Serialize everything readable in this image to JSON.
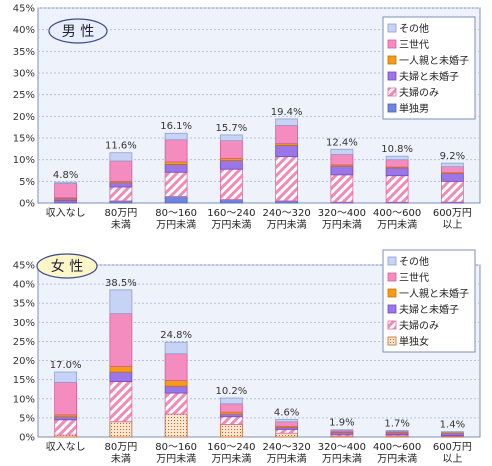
{
  "chart_data": [
    {
      "type": "bar",
      "stacked": true,
      "title": "男 性",
      "ylim": [
        0,
        45
      ],
      "yticks": [
        "0%",
        "5%",
        "10%",
        "15%",
        "20%",
        "25%",
        "30%",
        "35%",
        "40%",
        "45%"
      ],
      "categories": [
        [
          "収入なし"
        ],
        [
          "80万円",
          "未満"
        ],
        [
          "80～160",
          "万円未満"
        ],
        [
          "160～240",
          "万円未満"
        ],
        [
          "240～320",
          "万円未満"
        ],
        [
          "320～400",
          "万円未満"
        ],
        [
          "400～600",
          "万円未満"
        ],
        [
          "600万円",
          "以上"
        ]
      ],
      "total_labels": [
        "4.8%",
        "11.6%",
        "16.1%",
        "15.7%",
        "19.4%",
        "12.4%",
        "10.8%",
        "9.2%"
      ],
      "totals": [
        4.8,
        11.6,
        16.1,
        15.7,
        19.4,
        12.4,
        10.8,
        9.2
      ],
      "series": [
        {
          "name": "単独男",
          "values": [
            0.3,
            0.5,
            1.5,
            0.8,
            0.5,
            0.2,
            0.2,
            0.2
          ]
        },
        {
          "name": "夫婦のみ",
          "values": [
            0.2,
            3.2,
            5.6,
            7.0,
            10.2,
            6.3,
            6.1,
            4.8
          ]
        },
        {
          "name": "夫婦と未婚子",
          "values": [
            0.5,
            1.0,
            1.8,
            2.0,
            2.6,
            2.0,
            1.8,
            1.8
          ]
        },
        {
          "name": "一人親と未婚子",
          "values": [
            0.2,
            0.3,
            0.6,
            0.5,
            0.4,
            0.3,
            0.2,
            0.2
          ]
        },
        {
          "name": "三世代",
          "values": [
            3.3,
            4.7,
            5.1,
            4.1,
            4.2,
            2.4,
            1.7,
            1.4
          ]
        },
        {
          "name": "その他",
          "values": [
            0.3,
            1.9,
            1.5,
            1.3,
            1.5,
            1.2,
            0.8,
            0.8
          ]
        }
      ]
    },
    {
      "type": "bar",
      "stacked": true,
      "title": "女 性",
      "ylim": [
        0,
        45
      ],
      "yticks": [
        "0%",
        "5%",
        "10%",
        "15%",
        "20%",
        "25%",
        "30%",
        "35%",
        "40%",
        "45%"
      ],
      "categories": [
        [
          "収入なし"
        ],
        [
          "80万円",
          "未満"
        ],
        [
          "80～160",
          "万円未満"
        ],
        [
          "160～240",
          "万円未満"
        ],
        [
          "240～320",
          "万円未満"
        ],
        [
          "320～400",
          "万円未満"
        ],
        [
          "400～600",
          "万円未満"
        ],
        [
          "600万円",
          "以上"
        ]
      ],
      "total_labels": [
        "17.0%",
        "38.5%",
        "24.8%",
        "10.2%",
        "4.6%",
        "1.9%",
        "1.7%",
        "1.4%"
      ],
      "totals": [
        17.0,
        38.5,
        24.8,
        10.2,
        4.6,
        1.9,
        1.7,
        1.4
      ],
      "series": [
        {
          "name": "単独女",
          "values": [
            0.5,
            4.0,
            6.0,
            3.3,
            1.0,
            0.3,
            0.3,
            0.2
          ]
        },
        {
          "name": "夫婦のみ",
          "values": [
            4.0,
            10.5,
            5.5,
            2.0,
            1.0,
            0.4,
            0.3,
            0.2
          ]
        },
        {
          "name": "夫婦と未婚子",
          "values": [
            0.8,
            2.5,
            1.8,
            0.7,
            0.5,
            0.5,
            0.5,
            0.5
          ]
        },
        {
          "name": "一人親と未婚子",
          "values": [
            0.5,
            1.5,
            1.5,
            0.5,
            0.3,
            0.2,
            0.2,
            0.2
          ]
        },
        {
          "name": "三世代",
          "values": [
            8.5,
            13.8,
            7.0,
            2.2,
            1.2,
            0.3,
            0.2,
            0.1
          ]
        },
        {
          "name": "その他",
          "values": [
            2.7,
            6.2,
            3.0,
            1.5,
            0.6,
            0.2,
            0.2,
            0.2
          ]
        }
      ]
    }
  ]
}
